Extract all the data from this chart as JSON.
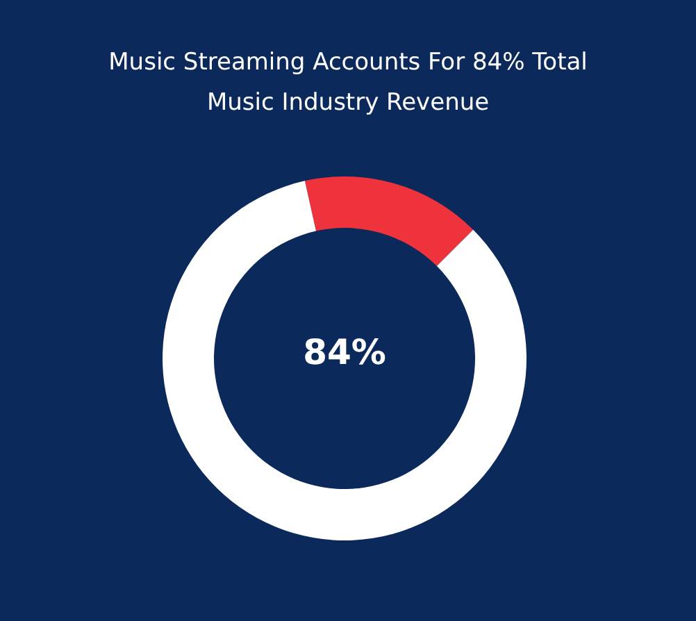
{
  "chart_data": {
    "type": "donut",
    "title": "Music Streaming Accounts For 84% Total Music Industry Revenue",
    "categories": [
      null,
      null
    ],
    "values": [
      16,
      84
    ],
    "colors": [
      "#ef333d",
      "#ffffff"
    ],
    "annotations": [
      "84%"
    ]
  }
}
